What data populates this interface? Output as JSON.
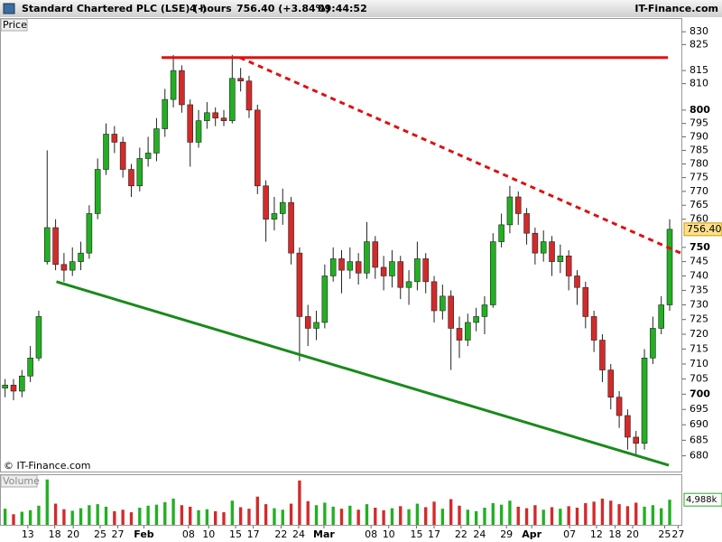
{
  "header": {
    "title": "Standard Chartered PLC (LSE) (-)",
    "interval": "4 hours",
    "quote": "756.40 (+3.84%)",
    "time": "09:44:52",
    "brand": "IT-Finance.com"
  },
  "watermark": "© IT-Finance.com",
  "chart_data": {
    "type": "candlestick",
    "y_label": "Price",
    "log_scale": true,
    "up_color": "#22b022",
    "down_color": "#d42a2a",
    "xlim": [
      0,
      81
    ],
    "ylim": [
      675,
      835
    ],
    "yticks": [
      680,
      685,
      690,
      695,
      700,
      705,
      710,
      715,
      720,
      725,
      730,
      735,
      740,
      745,
      750,
      760,
      765,
      770,
      775,
      780,
      785,
      790,
      795,
      800,
      810,
      815,
      825,
      830
    ],
    "xticks": [
      {
        "value": 3.2,
        "label": "13"
      },
      {
        "value": 6.4,
        "label": "18"
      },
      {
        "value": 8.6,
        "label": "20"
      },
      {
        "value": 11.8,
        "label": "25"
      },
      {
        "value": 13.9,
        "label": "27"
      },
      {
        "value": 17,
        "label": "Feb"
      },
      {
        "value": 22.3,
        "label": "08"
      },
      {
        "value": 24.7,
        "label": "10"
      },
      {
        "value": 27.9,
        "label": "15"
      },
      {
        "value": 30,
        "label": "17"
      },
      {
        "value": 33.3,
        "label": "22"
      },
      {
        "value": 35.4,
        "label": "24"
      },
      {
        "value": 38.4,
        "label": "Mar"
      },
      {
        "value": 44,
        "label": "08"
      },
      {
        "value": 46.1,
        "label": "10"
      },
      {
        "value": 49.4,
        "label": "15"
      },
      {
        "value": 51.5,
        "label": "17"
      },
      {
        "value": 54.7,
        "label": "22"
      },
      {
        "value": 56.9,
        "label": "24"
      },
      {
        "value": 60.1,
        "label": "29"
      },
      {
        "value": 63.1,
        "label": "Apr"
      },
      {
        "value": 67.6,
        "label": "07"
      },
      {
        "value": 70.8,
        "label": "12"
      },
      {
        "value": 73,
        "label": "18"
      },
      {
        "value": 75.1,
        "label": "20"
      },
      {
        "value": 78.9,
        "label": "25"
      },
      {
        "value": 80.5,
        "label": "27"
      }
    ],
    "last_price": {
      "value": 756.4,
      "label": "756.40"
    },
    "ohlc": [
      [
        702,
        705,
        699,
        703
      ],
      [
        703,
        705,
        698,
        701
      ],
      [
        701,
        708,
        699,
        706
      ],
      [
        706,
        716,
        704,
        712
      ],
      [
        712,
        728,
        711,
        726
      ],
      [
        745,
        785,
        744,
        757
      ],
      [
        757,
        760,
        742,
        744
      ],
      [
        744,
        748,
        738,
        742
      ],
      [
        742,
        750,
        740,
        745
      ],
      [
        745,
        752,
        742,
        748
      ],
      [
        748,
        765,
        746,
        762
      ],
      [
        762,
        782,
        760,
        778
      ],
      [
        778,
        795,
        776,
        791
      ],
      [
        791,
        794,
        784,
        788
      ],
      [
        788,
        790,
        775,
        778
      ],
      [
        778,
        780,
        768,
        772
      ],
      [
        772,
        786,
        770,
        782
      ],
      [
        782,
        790,
        779,
        784
      ],
      [
        784,
        797,
        781,
        793
      ],
      [
        793,
        808,
        790,
        804
      ],
      [
        804,
        821,
        801,
        815
      ],
      [
        815,
        817,
        799,
        802
      ],
      [
        802,
        804,
        779,
        788
      ],
      [
        788,
        800,
        786,
        796
      ],
      [
        796,
        803,
        793,
        799
      ],
      [
        799,
        801,
        794,
        797
      ],
      [
        797,
        800,
        794,
        796
      ],
      [
        796,
        821,
        795,
        812
      ],
      [
        812,
        816,
        807,
        811
      ],
      [
        811,
        813,
        797,
        800
      ],
      [
        800,
        802,
        769,
        772
      ],
      [
        772,
        774,
        752,
        760
      ],
      [
        760,
        768,
        756,
        762
      ],
      [
        762,
        771,
        758,
        766
      ],
      [
        766,
        768,
        744,
        748
      ],
      [
        748,
        750,
        711,
        726
      ],
      [
        726,
        730,
        716,
        722
      ],
      [
        722,
        728,
        718,
        724
      ],
      [
        724,
        744,
        722,
        740
      ],
      [
        740,
        750,
        738,
        746
      ],
      [
        746,
        749,
        734,
        742
      ],
      [
        742,
        750,
        739,
        745
      ],
      [
        745,
        748,
        737,
        741
      ],
      [
        741,
        759,
        739,
        752
      ],
      [
        752,
        754,
        739,
        743
      ],
      [
        743,
        747,
        735,
        740
      ],
      [
        740,
        749,
        736,
        745
      ],
      [
        745,
        747,
        732,
        736
      ],
      [
        736,
        742,
        730,
        738
      ],
      [
        738,
        752,
        735,
        746
      ],
      [
        746,
        748,
        734,
        738
      ],
      [
        738,
        740,
        724,
        728
      ],
      [
        728,
        737,
        725,
        733
      ],
      [
        733,
        735,
        708,
        722
      ],
      [
        722,
        726,
        712,
        718
      ],
      [
        718,
        727,
        716,
        724
      ],
      [
        724,
        729,
        721,
        726
      ],
      [
        726,
        733,
        720,
        730
      ],
      [
        730,
        755,
        729,
        752
      ],
      [
        752,
        762,
        750,
        758
      ],
      [
        758,
        772,
        755,
        768
      ],
      [
        768,
        770,
        758,
        762
      ],
      [
        762,
        764,
        751,
        755
      ],
      [
        755,
        757,
        744,
        748
      ],
      [
        748,
        756,
        745,
        752
      ],
      [
        752,
        754,
        740,
        745
      ],
      [
        745,
        751,
        741,
        747
      ],
      [
        747,
        749,
        735,
        740
      ],
      [
        740,
        742,
        730,
        736
      ],
      [
        736,
        738,
        722,
        726
      ],
      [
        726,
        728,
        714,
        718
      ],
      [
        718,
        720,
        704,
        708
      ],
      [
        708,
        710,
        695,
        699
      ],
      [
        699,
        701,
        689,
        693
      ],
      [
        693,
        695,
        682,
        686
      ],
      [
        686,
        688,
        680,
        684
      ],
      [
        684,
        715,
        682,
        712
      ],
      [
        712,
        726,
        710,
        722
      ],
      [
        722,
        733,
        720,
        730
      ],
      [
        730,
        760,
        728,
        756.4
      ]
    ],
    "trendlines": [
      {
        "from": [
          19.1,
          820
        ],
        "to": [
          79.3,
          820
        ],
        "color": "#e01010",
        "style": "solid"
      },
      {
        "from": [
          28.4,
          820
        ],
        "to": [
          80.8,
          748
        ],
        "color": "#e01010",
        "style": "dashed"
      },
      {
        "from": [
          6.6,
          738
        ],
        "to": [
          79.4,
          677
        ],
        "color": "#1a8a1a",
        "style": "solid"
      }
    ],
    "volume": {
      "name": "Volume",
      "ylim": [
        0,
        9500
      ],
      "last": {
        "value": 4988,
        "label": "4,988k"
      },
      "values": [
        3200,
        2100,
        2600,
        2900,
        3800,
        9000,
        4200,
        3100,
        2800,
        3300,
        3900,
        4100,
        3600,
        2700,
        3000,
        2500,
        3400,
        3800,
        4000,
        4500,
        5200,
        3900,
        3600,
        2900,
        3100,
        2700,
        2500,
        4800,
        3500,
        3200,
        5600,
        4100,
        3300,
        3000,
        4200,
        8800,
        4700,
        3900,
        4400,
        3600,
        3200,
        3800,
        3000,
        4100,
        3400,
        2900,
        3300,
        3700,
        3100,
        4200,
        3500,
        4600,
        3200,
        5100,
        3800,
        3000,
        2700,
        3400,
        4300,
        4000,
        4800,
        3600,
        3300,
        3900,
        3000,
        3500,
        3200,
        3700,
        3400,
        4300,
        4600,
        5200,
        4800,
        4100,
        3700,
        4400,
        3600,
        3900,
        3300,
        4988
      ]
    }
  }
}
